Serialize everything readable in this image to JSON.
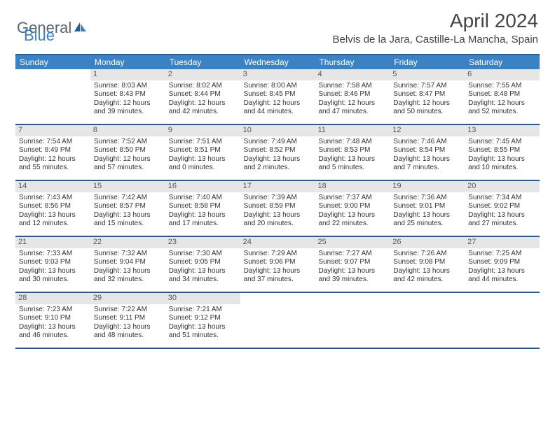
{
  "brand": {
    "part1": "General",
    "part2": "Blue"
  },
  "title": "April 2024",
  "location": "Belvis de la Jara, Castille-La Mancha, Spain",
  "colors": {
    "header_bar": "#3b82c4",
    "border": "#2b5a8a",
    "daynum_bg": "#e6e6e6",
    "text": "#333333",
    "brand_gray": "#5a6570",
    "brand_blue": "#3a7fbf"
  },
  "days_of_week": [
    "Sunday",
    "Monday",
    "Tuesday",
    "Wednesday",
    "Thursday",
    "Friday",
    "Saturday"
  ],
  "weeks": [
    [
      null,
      {
        "n": "1",
        "sr": "8:03 AM",
        "ss": "8:43 PM",
        "dl": "12 hours and 39 minutes."
      },
      {
        "n": "2",
        "sr": "8:02 AM",
        "ss": "8:44 PM",
        "dl": "12 hours and 42 minutes."
      },
      {
        "n": "3",
        "sr": "8:00 AM",
        "ss": "8:45 PM",
        "dl": "12 hours and 44 minutes."
      },
      {
        "n": "4",
        "sr": "7:58 AM",
        "ss": "8:46 PM",
        "dl": "12 hours and 47 minutes."
      },
      {
        "n": "5",
        "sr": "7:57 AM",
        "ss": "8:47 PM",
        "dl": "12 hours and 50 minutes."
      },
      {
        "n": "6",
        "sr": "7:55 AM",
        "ss": "8:48 PM",
        "dl": "12 hours and 52 minutes."
      }
    ],
    [
      {
        "n": "7",
        "sr": "7:54 AM",
        "ss": "8:49 PM",
        "dl": "12 hours and 55 minutes."
      },
      {
        "n": "8",
        "sr": "7:52 AM",
        "ss": "8:50 PM",
        "dl": "12 hours and 57 minutes."
      },
      {
        "n": "9",
        "sr": "7:51 AM",
        "ss": "8:51 PM",
        "dl": "13 hours and 0 minutes."
      },
      {
        "n": "10",
        "sr": "7:49 AM",
        "ss": "8:52 PM",
        "dl": "13 hours and 2 minutes."
      },
      {
        "n": "11",
        "sr": "7:48 AM",
        "ss": "8:53 PM",
        "dl": "13 hours and 5 minutes."
      },
      {
        "n": "12",
        "sr": "7:46 AM",
        "ss": "8:54 PM",
        "dl": "13 hours and 7 minutes."
      },
      {
        "n": "13",
        "sr": "7:45 AM",
        "ss": "8:55 PM",
        "dl": "13 hours and 10 minutes."
      }
    ],
    [
      {
        "n": "14",
        "sr": "7:43 AM",
        "ss": "8:56 PM",
        "dl": "13 hours and 12 minutes."
      },
      {
        "n": "15",
        "sr": "7:42 AM",
        "ss": "8:57 PM",
        "dl": "13 hours and 15 minutes."
      },
      {
        "n": "16",
        "sr": "7:40 AM",
        "ss": "8:58 PM",
        "dl": "13 hours and 17 minutes."
      },
      {
        "n": "17",
        "sr": "7:39 AM",
        "ss": "8:59 PM",
        "dl": "13 hours and 20 minutes."
      },
      {
        "n": "18",
        "sr": "7:37 AM",
        "ss": "9:00 PM",
        "dl": "13 hours and 22 minutes."
      },
      {
        "n": "19",
        "sr": "7:36 AM",
        "ss": "9:01 PM",
        "dl": "13 hours and 25 minutes."
      },
      {
        "n": "20",
        "sr": "7:34 AM",
        "ss": "9:02 PM",
        "dl": "13 hours and 27 minutes."
      }
    ],
    [
      {
        "n": "21",
        "sr": "7:33 AM",
        "ss": "9:03 PM",
        "dl": "13 hours and 30 minutes."
      },
      {
        "n": "22",
        "sr": "7:32 AM",
        "ss": "9:04 PM",
        "dl": "13 hours and 32 minutes."
      },
      {
        "n": "23",
        "sr": "7:30 AM",
        "ss": "9:05 PM",
        "dl": "13 hours and 34 minutes."
      },
      {
        "n": "24",
        "sr": "7:29 AM",
        "ss": "9:06 PM",
        "dl": "13 hours and 37 minutes."
      },
      {
        "n": "25",
        "sr": "7:27 AM",
        "ss": "9:07 PM",
        "dl": "13 hours and 39 minutes."
      },
      {
        "n": "26",
        "sr": "7:26 AM",
        "ss": "9:08 PM",
        "dl": "13 hours and 42 minutes."
      },
      {
        "n": "27",
        "sr": "7:25 AM",
        "ss": "9:09 PM",
        "dl": "13 hours and 44 minutes."
      }
    ],
    [
      {
        "n": "28",
        "sr": "7:23 AM",
        "ss": "9:10 PM",
        "dl": "13 hours and 46 minutes."
      },
      {
        "n": "29",
        "sr": "7:22 AM",
        "ss": "9:11 PM",
        "dl": "13 hours and 48 minutes."
      },
      {
        "n": "30",
        "sr": "7:21 AM",
        "ss": "9:12 PM",
        "dl": "13 hours and 51 minutes."
      },
      null,
      null,
      null,
      null
    ]
  ],
  "labels": {
    "sunrise": "Sunrise:",
    "sunset": "Sunset:",
    "daylight": "Daylight:"
  }
}
